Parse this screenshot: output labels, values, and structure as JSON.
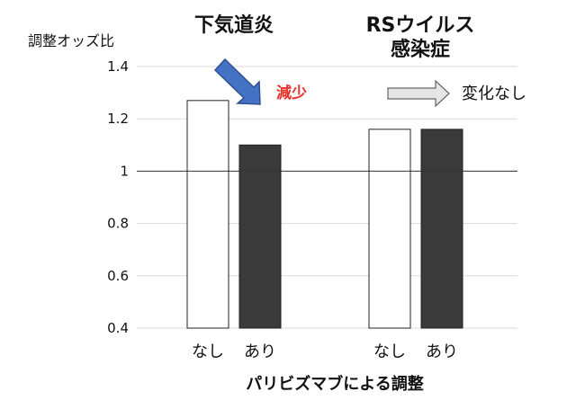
{
  "chart_data": {
    "type": "bar",
    "ylabel": "調整オッズ比",
    "xlabel": "パリビズマブによる調整",
    "ylim": [
      0.4,
      1.4
    ],
    "yticks": [
      "0.4",
      "0.6",
      "0.8",
      "1",
      "1.2",
      "1.4"
    ],
    "reference_line": 1,
    "grid": true,
    "groups": [
      {
        "title_lines": [
          "下気道炎"
        ],
        "categories": [
          "なし",
          "あり"
        ],
        "values": [
          1.27,
          1.1
        ],
        "fills": [
          "#ffffff",
          "#3a3a3a"
        ],
        "annotation": "減少",
        "annotation_color": "#e8332a",
        "arrow_color": "#4472c4"
      },
      {
        "title_lines": [
          "RSウイルス",
          "感染症"
        ],
        "categories": [
          "なし",
          "あり"
        ],
        "values": [
          1.16,
          1.16
        ],
        "fills": [
          "#ffffff",
          "#3a3a3a"
        ],
        "annotation": "変化なし",
        "annotation_color": "#111111",
        "arrow_color": "#e6e6e6"
      }
    ]
  }
}
